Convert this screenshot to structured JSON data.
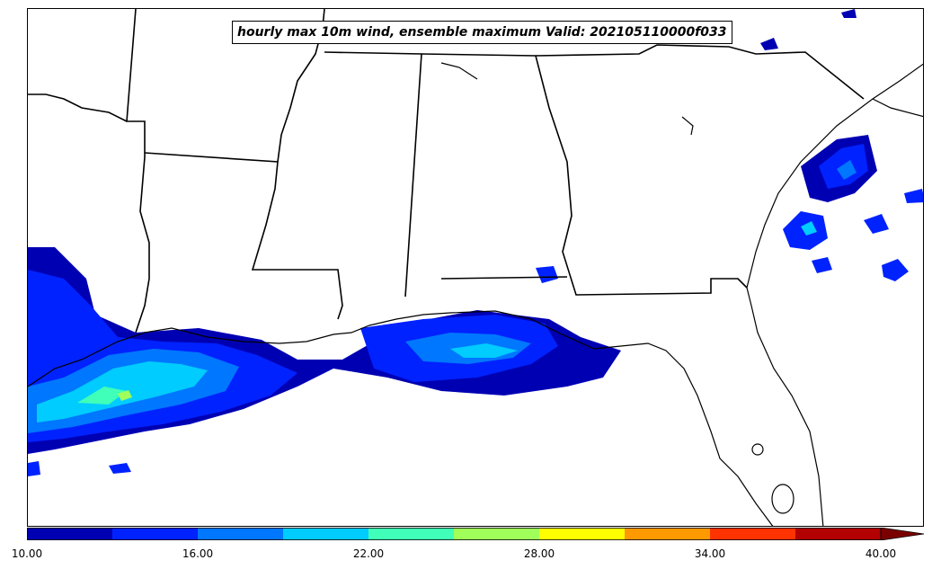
{
  "title": "hourly max 10m wind, ensemble maximum Valid: 202105110000f033",
  "colorbar": {
    "colors": [
      "#0000b3",
      "#0022ff",
      "#0077ff",
      "#00ccff",
      "#40ffb8",
      "#a0ff58",
      "#ffff00",
      "#ff9900",
      "#ff3300",
      "#b30000"
    ],
    "extend_color": "#7a0000",
    "min": 10,
    "max": 40,
    "step": 3,
    "tick_labels": [
      "10.00",
      "16.00",
      "22.00",
      "28.00",
      "34.00",
      "40.00"
    ]
  }
}
